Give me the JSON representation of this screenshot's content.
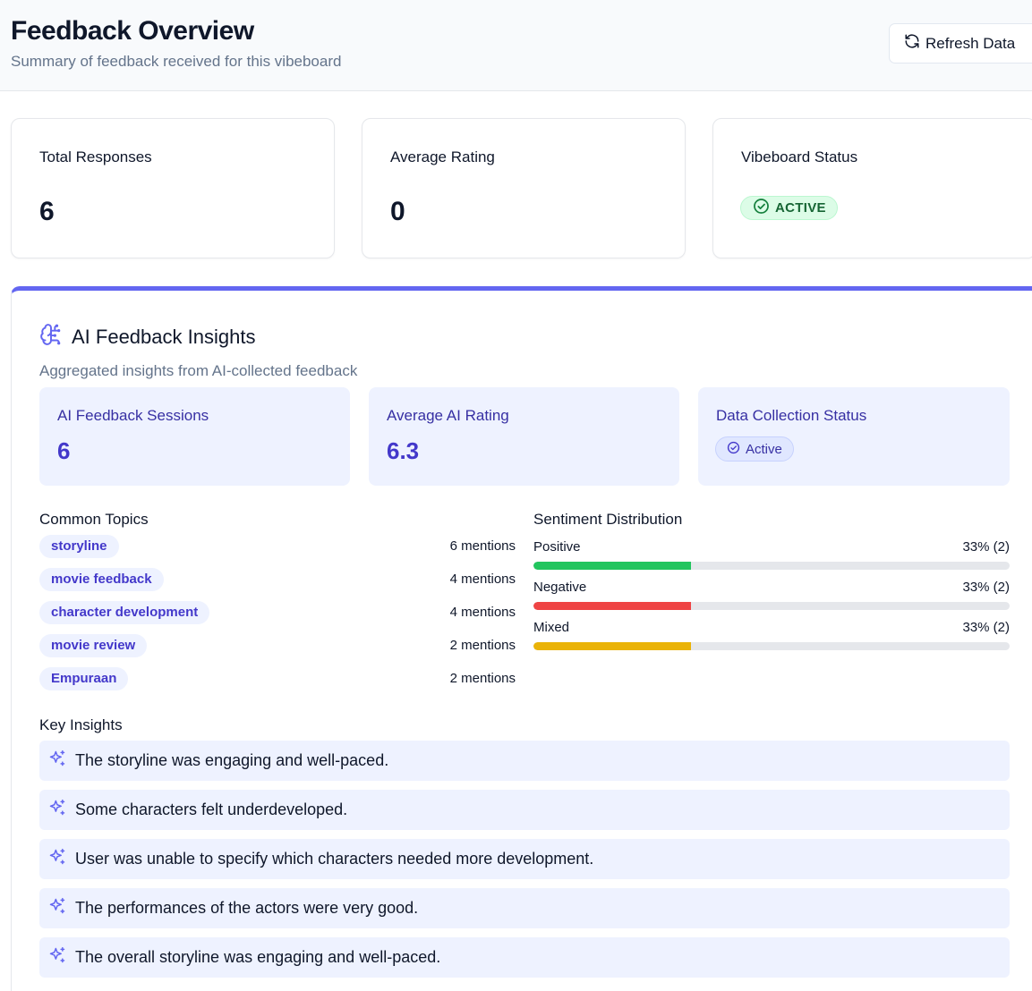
{
  "header": {
    "title": "Feedback Overview",
    "subtitle": "Summary of feedback received for this vibeboard",
    "refresh_label": "Refresh Data"
  },
  "stats": {
    "total_responses": {
      "label": "Total Responses",
      "value": "6"
    },
    "average_rating": {
      "label": "Average Rating",
      "value": "0"
    },
    "vibeboard_status": {
      "label": "Vibeboard Status",
      "badge": "ACTIVE"
    }
  },
  "ai_insights": {
    "title": "AI Feedback Insights",
    "subtitle": "Aggregated insights from AI-collected feedback",
    "sessions": {
      "label": "AI Feedback Sessions",
      "value": "6"
    },
    "avg_rating": {
      "label": "Average AI Rating",
      "value": "6.3"
    },
    "collection_status": {
      "label": "Data Collection Status",
      "badge": "Active"
    },
    "topics_heading": "Common Topics",
    "topics": [
      {
        "name": "storyline",
        "count": "6 mentions"
      },
      {
        "name": "movie feedback",
        "count": "4 mentions"
      },
      {
        "name": "character development",
        "count": "4 mentions"
      },
      {
        "name": "movie review",
        "count": "2 mentions"
      },
      {
        "name": "Empuraan",
        "count": "2 mentions"
      }
    ],
    "sentiment_heading": "Sentiment Distribution",
    "sentiment": [
      {
        "label": "Positive",
        "value": "33% (2)",
        "fraction": 0.33,
        "color": "#22c55e"
      },
      {
        "label": "Negative",
        "value": "33% (2)",
        "fraction": 0.33,
        "color": "#ef4444"
      },
      {
        "label": "Mixed",
        "value": "33% (2)",
        "fraction": 0.33,
        "color": "#eab308"
      }
    ],
    "key_insights_heading": "Key Insights",
    "key_insights": [
      "The storyline was engaging and well-paced.",
      "Some characters felt underdeveloped.",
      "User was unable to specify which characters needed more development.",
      "The performances of the actors were very good.",
      "The overall storyline was engaging and well-paced."
    ]
  },
  "icons": {
    "refresh": "refresh-icon",
    "check_circle": "check-circle-icon",
    "brain": "brain-icon",
    "sparkle": "sparkle-icon"
  },
  "colors": {
    "accent": "#6366f1",
    "success": "#22c55e",
    "danger": "#ef4444",
    "warning": "#eab308"
  }
}
